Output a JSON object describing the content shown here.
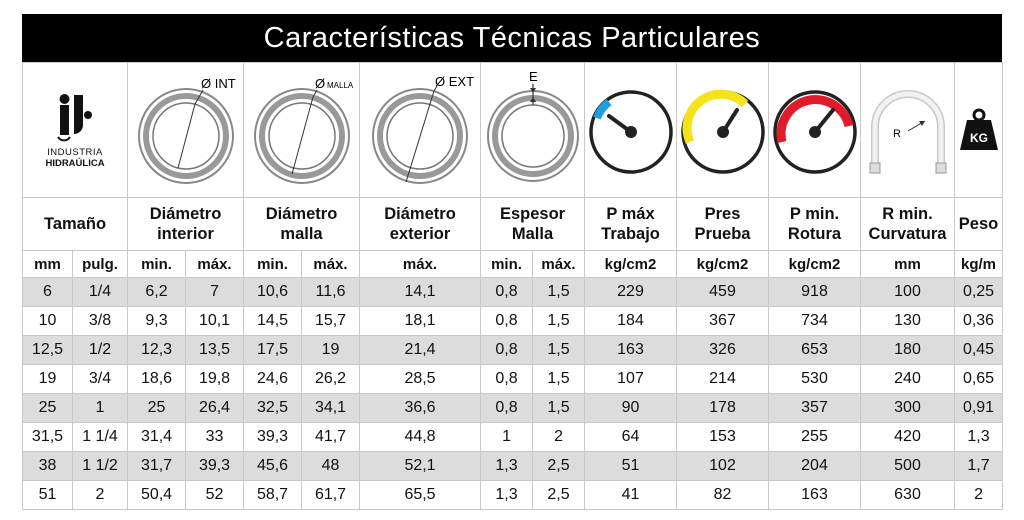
{
  "title": "Características Técnicas Particulares",
  "logo": {
    "line1": "INDUSTRIA",
    "line2": "HIDRAÚLICA",
    "icon": "ih-logo-icon"
  },
  "icons": {
    "int": {
      "label": "Ø INT",
      "icon": "inner-diameter-icon"
    },
    "malla": {
      "label": "Ø",
      "sub": "MALLA",
      "icon": "mesh-diameter-icon"
    },
    "ext": {
      "label": "Ø EXT",
      "icon": "outer-diameter-icon"
    },
    "esp": {
      "label": "E",
      "icon": "mesh-thickness-icon"
    },
    "gauge1": {
      "icon": "working-pressure-gauge-icon",
      "color": "#1e9ee0"
    },
    "gauge2": {
      "icon": "test-pressure-gauge-icon",
      "color": "#f4e21a"
    },
    "gauge3": {
      "icon": "burst-pressure-gauge-icon",
      "color": "#e21b2a"
    },
    "radius": {
      "label": "R",
      "icon": "bend-radius-hose-icon"
    },
    "weight": {
      "label": "KG",
      "icon": "weight-icon"
    }
  },
  "headers": {
    "tamano": "Tamaño",
    "diam_int": "Diámetro interior",
    "diam_malla": "Diámetro malla",
    "diam_ext": "Diámetro exterior",
    "espesor": "Espesor Malla",
    "pmax": "P máx Trabajo",
    "pres": "Pres Prueba",
    "pmin": "P min. Rotura",
    "rmin": "R min. Curvatura",
    "peso": "Peso"
  },
  "units": {
    "mm": "mm",
    "pulg": "pulg.",
    "min": "min.",
    "max": "máx.",
    "kgcm2": "kg/cm2",
    "kgm": "kg/m"
  },
  "rows": [
    [
      "6",
      "1/4",
      "6,2",
      "7",
      "10,6",
      "11,6",
      "14,1",
      "0,8",
      "1,5",
      "229",
      "459",
      "918",
      "100",
      "0,25"
    ],
    [
      "10",
      "3/8",
      "9,3",
      "10,1",
      "14,5",
      "15,7",
      "18,1",
      "0,8",
      "1,5",
      "184",
      "367",
      "734",
      "130",
      "0,36"
    ],
    [
      "12,5",
      "1/2",
      "12,3",
      "13,5",
      "17,5",
      "19",
      "21,4",
      "0,8",
      "1,5",
      "163",
      "326",
      "653",
      "180",
      "0,45"
    ],
    [
      "19",
      "3/4",
      "18,6",
      "19,8",
      "24,6",
      "26,2",
      "28,5",
      "0,8",
      "1,5",
      "107",
      "214",
      "530",
      "240",
      "0,65"
    ],
    [
      "25",
      "1",
      "25",
      "26,4",
      "32,5",
      "34,1",
      "36,6",
      "0,8",
      "1,5",
      "90",
      "178",
      "357",
      "300",
      "0,91"
    ],
    [
      "31,5",
      "1 1/4",
      "31,4",
      "33",
      "39,3",
      "41,7",
      "44,8",
      "1",
      "2",
      "64",
      "153",
      "255",
      "420",
      "1,3"
    ],
    [
      "38",
      "1 1/2",
      "31,7",
      "39,3",
      "45,6",
      "48",
      "52,1",
      "1,3",
      "2,5",
      "51",
      "102",
      "204",
      "500",
      "1,7"
    ],
    [
      "51",
      "2",
      "50,4",
      "52",
      "58,7",
      "61,7",
      "65,5",
      "1,3",
      "2,5",
      "41",
      "82",
      "163",
      "630",
      "2"
    ]
  ]
}
